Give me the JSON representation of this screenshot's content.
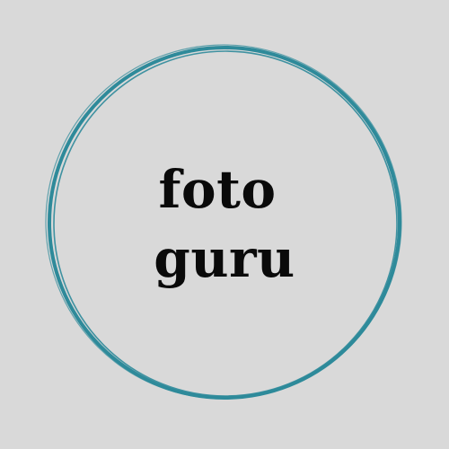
{
  "logo": {
    "line1": "foto",
    "line2": "guru"
  },
  "colors": {
    "background": "#d9d9d9",
    "ring": "#2e8a9a",
    "text": "#0a0a0a"
  }
}
